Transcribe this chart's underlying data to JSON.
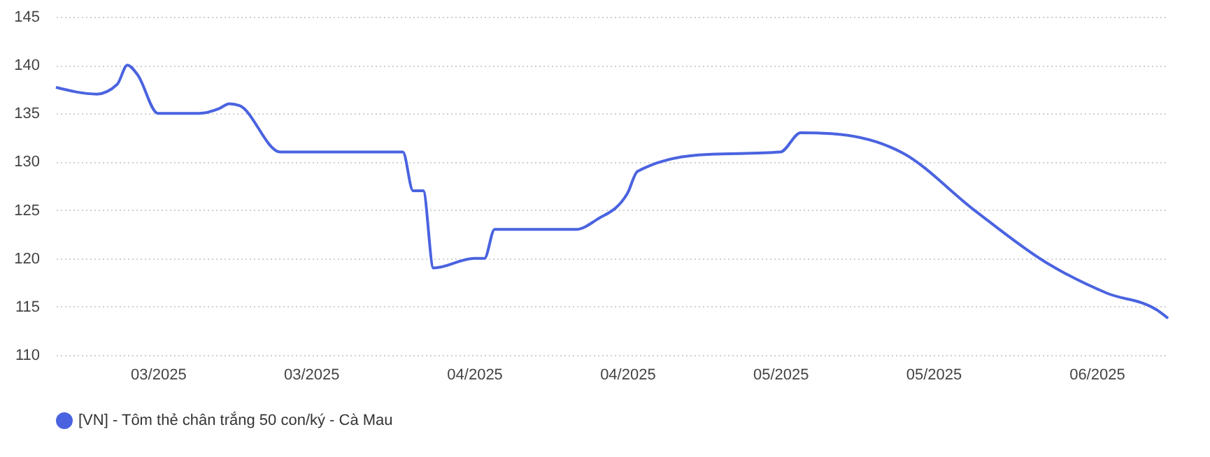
{
  "chart_data": {
    "type": "line",
    "x": [
      "2025-02-19",
      "2025-02-23",
      "2025-02-25",
      "2025-02-26",
      "2025-02-27",
      "2025-03-01",
      "2025-03-05",
      "2025-03-07",
      "2025-03-08",
      "2025-03-09",
      "2025-03-13",
      "2025-03-25",
      "2025-03-26",
      "2025-03-27",
      "2025-03-28",
      "2025-04-01",
      "2025-04-02",
      "2025-04-03",
      "2025-04-11",
      "2025-04-13",
      "2025-04-16",
      "2025-04-17",
      "2025-04-23",
      "2025-05-01",
      "2025-05-03",
      "2025-05-06",
      "2025-05-13",
      "2025-05-20",
      "2025-05-27",
      "2025-06-02",
      "2025-06-07",
      "2025-06-08"
    ],
    "series": [
      {
        "name": "[VN] - Tôm thẻ chân trắng 50 con/ký - Cà Mau",
        "color": "#4a63e0",
        "values": [
          137.7,
          137,
          138,
          140,
          139,
          135,
          135,
          135.5,
          136,
          135.8,
          131,
          131,
          127,
          127,
          119,
          120,
          120,
          123,
          123,
          124,
          126.7,
          129,
          130.7,
          131,
          133,
          132.9,
          130.9,
          125,
          119.6,
          116.4,
          114.6,
          113.8
        ]
      }
    ],
    "xlim": [
      "2025-02-19",
      "2025-06-08"
    ],
    "xticks": [
      {
        "value": "2025-03-01",
        "label": "03/2025"
      },
      {
        "value": "2025-03-16",
        "label": "03/2025"
      },
      {
        "value": "2025-04-01",
        "label": "04/2025"
      },
      {
        "value": "2025-04-16",
        "label": "04/2025"
      },
      {
        "value": "2025-05-01",
        "label": "05/2025"
      },
      {
        "value": "2025-05-16",
        "label": "05/2025"
      },
      {
        "value": "2025-06-01",
        "label": "06/2025"
      }
    ],
    "ylim": [
      110,
      145
    ],
    "yticks": [
      110,
      115,
      120,
      125,
      130,
      135,
      140,
      145
    ],
    "grid": "y",
    "legend": "bottom",
    "marker": "none",
    "line_style": "solid"
  }
}
